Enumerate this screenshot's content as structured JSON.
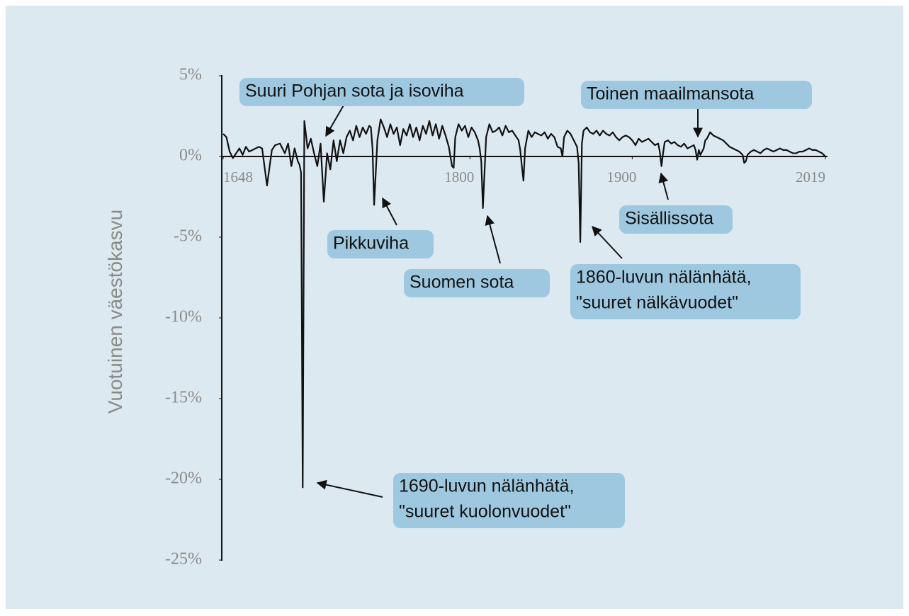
{
  "chart_data": {
    "type": "line",
    "y_label": "Vuotuinen väestökasvu",
    "x": [
      1648,
      1650,
      1652,
      1654,
      1656,
      1658,
      1660,
      1662,
      1664,
      1666,
      1670,
      1672,
      1675,
      1678,
      1680,
      1683,
      1686,
      1688,
      1690,
      1692,
      1694,
      1695,
      1696,
      1697,
      1698,
      1700,
      1702,
      1704,
      1706,
      1708,
      1710,
      1712,
      1714,
      1716,
      1718,
      1720,
      1722,
      1724,
      1726,
      1728,
      1730,
      1732,
      1734,
      1736,
      1738,
      1739,
      1740,
      1741,
      1742,
      1743,
      1745,
      1747,
      1749,
      1751,
      1753,
      1755,
      1757,
      1759,
      1761,
      1763,
      1765,
      1767,
      1769,
      1771,
      1773,
      1775,
      1777,
      1779,
      1781,
      1783,
      1785,
      1787,
      1789,
      1790,
      1791,
      1793,
      1795,
      1797,
      1799,
      1801,
      1803,
      1805,
      1806,
      1807,
      1808,
      1809,
      1810,
      1812,
      1814,
      1816,
      1818,
      1820,
      1822,
      1824,
      1826,
      1828,
      1830,
      1831,
      1832,
      1833,
      1834,
      1836,
      1838,
      1840,
      1842,
      1844,
      1846,
      1848,
      1850,
      1852,
      1854,
      1856,
      1857,
      1858,
      1860,
      1862,
      1864,
      1866,
      1867,
      1868,
      1869,
      1870,
      1872,
      1874,
      1876,
      1878,
      1880,
      1882,
      1884,
      1886,
      1888,
      1890,
      1892,
      1894,
      1896,
      1898,
      1900,
      1902,
      1904,
      1906,
      1908,
      1910,
      1912,
      1914,
      1916,
      1917,
      1918,
      1919,
      1920,
      1922,
      1924,
      1926,
      1928,
      1930,
      1932,
      1934,
      1936,
      1938,
      1939,
      1940,
      1941,
      1942,
      1944,
      1945,
      1946,
      1948,
      1950,
      1952,
      1954,
      1956,
      1958,
      1960,
      1962,
      1964,
      1966,
      1968,
      1969,
      1970,
      1971,
      1973,
      1975,
      1977,
      1979,
      1981,
      1983,
      1985,
      1987,
      1989,
      1991,
      1993,
      1995,
      1997,
      1999,
      2001,
      2003,
      2005,
      2007,
      2009,
      2011,
      2013,
      2015,
      2017,
      2019
    ],
    "series": [
      {
        "color": "#111111",
        "values": [
          1.4,
          1.2,
          0.3,
          -0.1,
          0.2,
          0.5,
          0.1,
          0.6,
          0.3,
          0.4,
          0.6,
          0.5,
          -1.8,
          0.4,
          0.7,
          0.8,
          0.2,
          0.8,
          -0.6,
          0.5,
          -0.3,
          -0.5,
          -1.0,
          -20.5,
          2.2,
          0.5,
          1.1,
          0.2,
          -0.6,
          0.8,
          -2.8,
          0.2,
          -0.8,
          1.0,
          -0.3,
          1.0,
          0.2,
          1.2,
          1.6,
          1.0,
          1.9,
          1.2,
          1.8,
          1.4,
          1.9,
          1.8,
          0.5,
          -3.0,
          -1.0,
          1.0,
          2.3,
          1.8,
          1.2,
          2.0,
          1.4,
          1.8,
          0.7,
          1.7,
          1.3,
          2.0,
          1.2,
          1.8,
          1.0,
          1.9,
          1.4,
          2.2,
          1.3,
          2.0,
          1.1,
          1.9,
          1.3,
          0.6,
          -0.6,
          -0.7,
          1.2,
          2.0,
          1.6,
          1.9,
          1.2,
          1.8,
          1.5,
          1.0,
          0.5,
          -0.3,
          -3.2,
          -1.0,
          1.2,
          2.0,
          1.5,
          1.6,
          1.8,
          1.3,
          1.9,
          1.5,
          1.6,
          1.3,
          1.0,
          0.4,
          -0.6,
          -1.5,
          0.5,
          1.6,
          1.2,
          1.5,
          1.4,
          1.3,
          1.5,
          1.1,
          1.4,
          1.2,
          0.6,
          0.5,
          0,
          1.2,
          1.6,
          1.4,
          1.0,
          0.6,
          -0.4,
          -5.3,
          0.8,
          1.6,
          1.8,
          1.5,
          1.4,
          1.6,
          1.3,
          1.6,
          1.4,
          1.3,
          1.5,
          1.2,
          1.0,
          1.2,
          1.3,
          1.2,
          1.0,
          0.7,
          1.1,
          0.9,
          1.0,
          1.1,
          0.9,
          0.7,
          0.8,
          0.3,
          -0.6,
          0.2,
          0.9,
          1.0,
          0.8,
          0.9,
          0.7,
          0.6,
          0.8,
          0.5,
          0.6,
          0.7,
          0.4,
          -0.2,
          0.4,
          0.1,
          0.5,
          1.0,
          1.1,
          1.5,
          1.3,
          1.2,
          1.1,
          1.0,
          0.8,
          0.6,
          0.5,
          0.4,
          0.3,
          0.1,
          -0.4,
          -0.3,
          0.1,
          0.3,
          0.4,
          0.3,
          0.2,
          0.4,
          0.5,
          0.4,
          0.3,
          0.4,
          0.5,
          0.4,
          0.4,
          0.3,
          0.2,
          0.2,
          0.3,
          0.3,
          0.4,
          0.5,
          0.4,
          0.4,
          0.3,
          0.2,
          0.0
        ]
      }
    ],
    "xlim": [
      1648,
      2019
    ],
    "xticks": [
      1648,
      1800,
      1900,
      2019
    ],
    "ylim": [
      -25,
      5
    ],
    "yticks": [
      {
        "value": 5,
        "label": "5%"
      },
      {
        "value": 0,
        "label": "0%"
      },
      {
        "value": -5,
        "label": "-5%"
      },
      {
        "value": -10,
        "label": "-10%"
      },
      {
        "value": -15,
        "label": "-15%"
      },
      {
        "value": -20,
        "label": "-20%"
      },
      {
        "value": -25,
        "label": "-25%"
      }
    ],
    "annotations": [
      {
        "text": [
          "Suuri Pohjan sota ja isoviha"
        ]
      },
      {
        "text": [
          "Toinen maailmansota"
        ]
      },
      {
        "text": [
          "Pikkuviha"
        ]
      },
      {
        "text": [
          "Suomen sota"
        ]
      },
      {
        "text": [
          "Sisällissota"
        ]
      },
      {
        "text": [
          "1860-luvun nälänhätä,",
          "\"suuret nälkävuodet\""
        ]
      },
      {
        "text": [
          "1690-luvun nälänhätä,",
          "\"suuret kuolonvuodet\""
        ]
      }
    ]
  }
}
